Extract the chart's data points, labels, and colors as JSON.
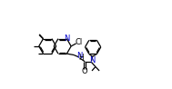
{
  "bg_color": "#ffffff",
  "bond_color": "#000000",
  "N_color": "#0000cc",
  "Cl_color": "#000000",
  "O_color": "#000000",
  "lw": 0.9,
  "fs": 5.5,
  "xlim": [
    0,
    10.5
  ],
  "ylim": [
    0.5,
    5.8
  ],
  "ring_r": 0.68
}
